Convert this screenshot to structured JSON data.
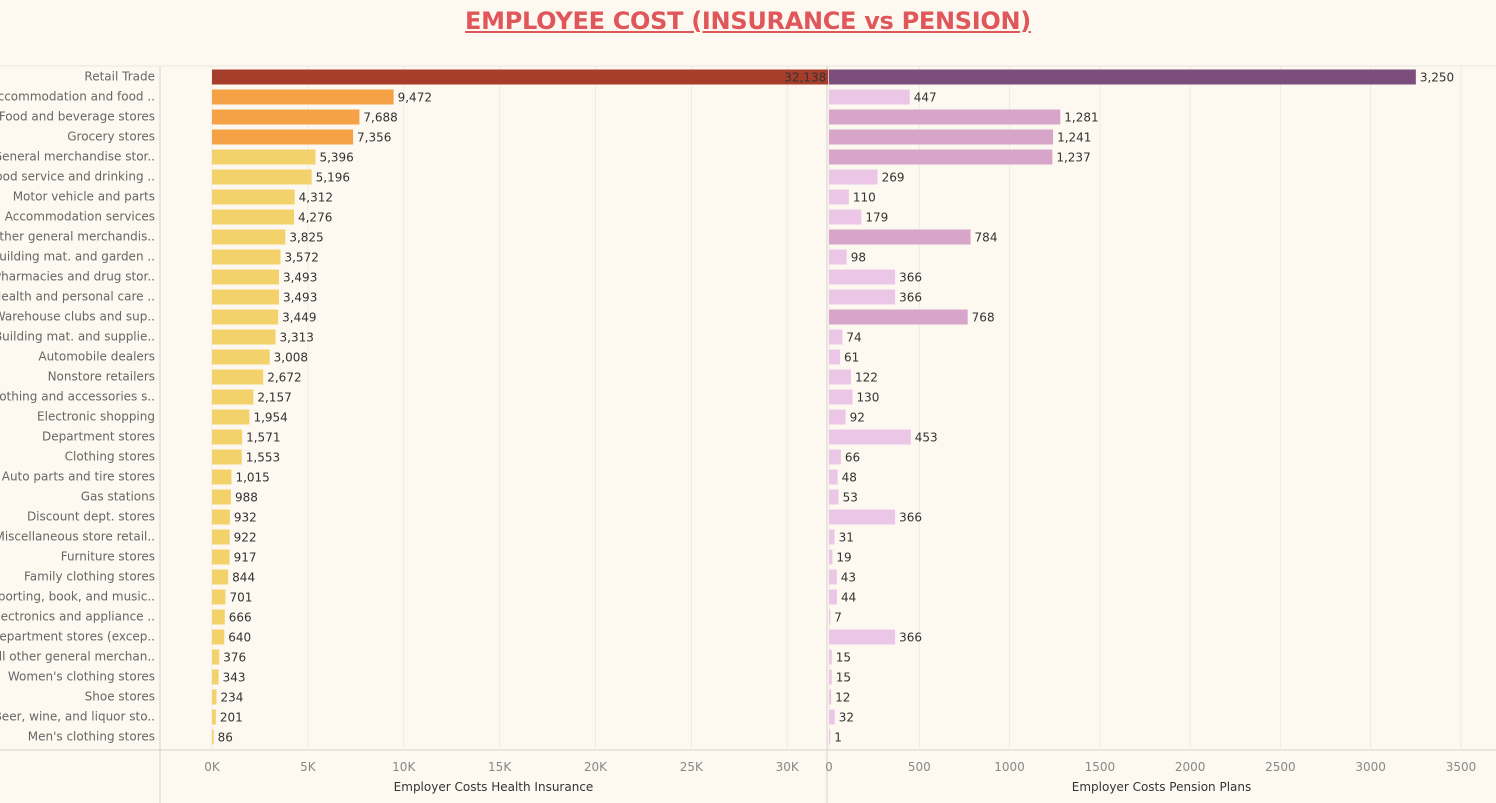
{
  "title": "EMPLOYEE COST (INSURANCE vs PENSION)",
  "colors": {
    "background": "#fdf9f1",
    "title": "#e0575b",
    "insurance_top": "#a63d2a",
    "insurance_high": "#f5a246",
    "insurance_base": "#f3d26c",
    "pension_top": "#7b4d7c",
    "pension_high": "#d6a5c9",
    "pension_base": "#ecc6e6"
  },
  "chart_data": {
    "type": "bar",
    "orientation": "horizontal",
    "categories": [
      "Retail Trade",
      "Accommodation and food ..",
      "Food and beverage stores",
      "Grocery stores",
      "General merchandise stor..",
      "Food service and drinking ..",
      "Motor vehicle and parts",
      "Accommodation services",
      "Other general merchandis..",
      "Building mat. and garden ..",
      "Pharmacies and drug stor..",
      "Health and personal care ..",
      "Warehouse clubs and sup..",
      "Building mat. and supplie..",
      "Automobile dealers",
      "Nonstore retailers",
      "Clothing and accessories s..",
      "Electronic shopping",
      "Department stores",
      "Clothing stores",
      "Auto parts and tire stores",
      "Gas stations",
      "Discount dept. stores",
      "Miscellaneous store retail..",
      "Furniture stores",
      "Family clothing stores",
      "Sporting, book, and  music..",
      "Electronics and appliance ..",
      "Department stores (excep..",
      "All other general merchan..",
      "Women's clothing stores",
      "Shoe stores",
      "Beer, wine, and liquor sto..",
      "Men's clothing stores"
    ],
    "series": [
      {
        "name": "Employer Costs Health Insurance",
        "values": [
          32138,
          9472,
          7688,
          7356,
          5396,
          5196,
          4312,
          4276,
          3825,
          3572,
          3493,
          3493,
          3449,
          3313,
          3008,
          2672,
          2157,
          1954,
          1571,
          1553,
          1015,
          988,
          932,
          922,
          917,
          844,
          701,
          666,
          640,
          376,
          343,
          234,
          201,
          86
        ],
        "value_labels": [
          "32,138",
          "9,472",
          "7,688",
          "7,356",
          "5,396",
          "5,196",
          "4,312",
          "4,276",
          "3,825",
          "3,572",
          "3,493",
          "3,493",
          "3,449",
          "3,313",
          "3,008",
          "2,672",
          "2,157",
          "1,954",
          "1,571",
          "1,553",
          "1,015",
          "988",
          "932",
          "922",
          "917",
          "844",
          "701",
          "666",
          "640",
          "376",
          "343",
          "234",
          "201",
          "86"
        ],
        "xlabel": "Employer Costs Health Insurance",
        "xlim": [
          0,
          31500
        ],
        "ticks": [
          0,
          5000,
          10000,
          15000,
          20000,
          25000,
          30000
        ],
        "tick_labels": [
          "0K",
          "5K",
          "10K",
          "15K",
          "20K",
          "25K",
          "30K"
        ]
      },
      {
        "name": "Employer Costs Pension Plans",
        "values": [
          3250,
          447,
          1281,
          1241,
          1237,
          269,
          110,
          179,
          784,
          98,
          366,
          366,
          768,
          74,
          61,
          122,
          130,
          92,
          453,
          66,
          48,
          53,
          366,
          31,
          19,
          43,
          44,
          7,
          366,
          15,
          15,
          12,
          32,
          1
        ],
        "value_labels": [
          "3,250",
          "447",
          "1,281",
          "1,241",
          "1,237",
          "269",
          "110",
          "179",
          "784",
          "98",
          "366",
          "366",
          "768",
          "74",
          "61",
          "122",
          "130",
          "92",
          "453",
          "66",
          "48",
          "53",
          "366",
          "31",
          "19",
          "43",
          "44",
          "7",
          "366",
          "15",
          "15",
          "12",
          "32",
          "1"
        ],
        "xlabel": "Employer Costs Pension Plans",
        "xlim": [
          0,
          3550
        ],
        "ticks": [
          0,
          500,
          1000,
          1500,
          2000,
          2500,
          3000,
          3500
        ],
        "tick_labels": [
          "0",
          "500",
          "1000",
          "1500",
          "2000",
          "2500",
          "3000",
          "3500"
        ]
      }
    ],
    "grid": true,
    "legend": "none"
  }
}
